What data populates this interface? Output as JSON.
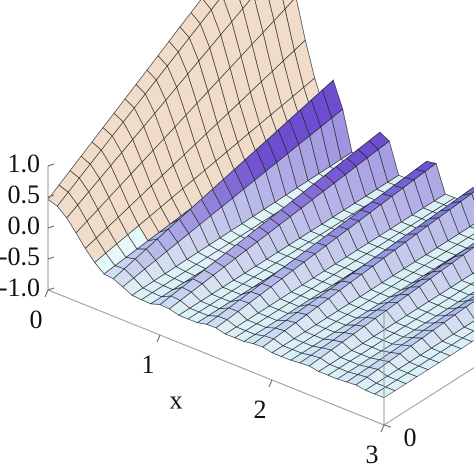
{
  "chart_data": {
    "type": "surface",
    "x_label": "x",
    "xlim": [
      0,
      3
    ],
    "xticks": [
      0,
      1,
      2,
      3
    ],
    "ylim": [
      0,
      4
    ],
    "yticks": [
      0
    ],
    "zlim": [
      -1,
      1
    ],
    "zticks": [
      {
        "value": 1.0,
        "label": "1.0"
      },
      {
        "value": 0.5,
        "label": "0.5"
      },
      {
        "value": 0.0,
        "label": "0.0"
      },
      {
        "value": -0.5,
        "label": "-0.5"
      },
      {
        "value": -1.0,
        "label": "-1.0"
      }
    ]
  }
}
